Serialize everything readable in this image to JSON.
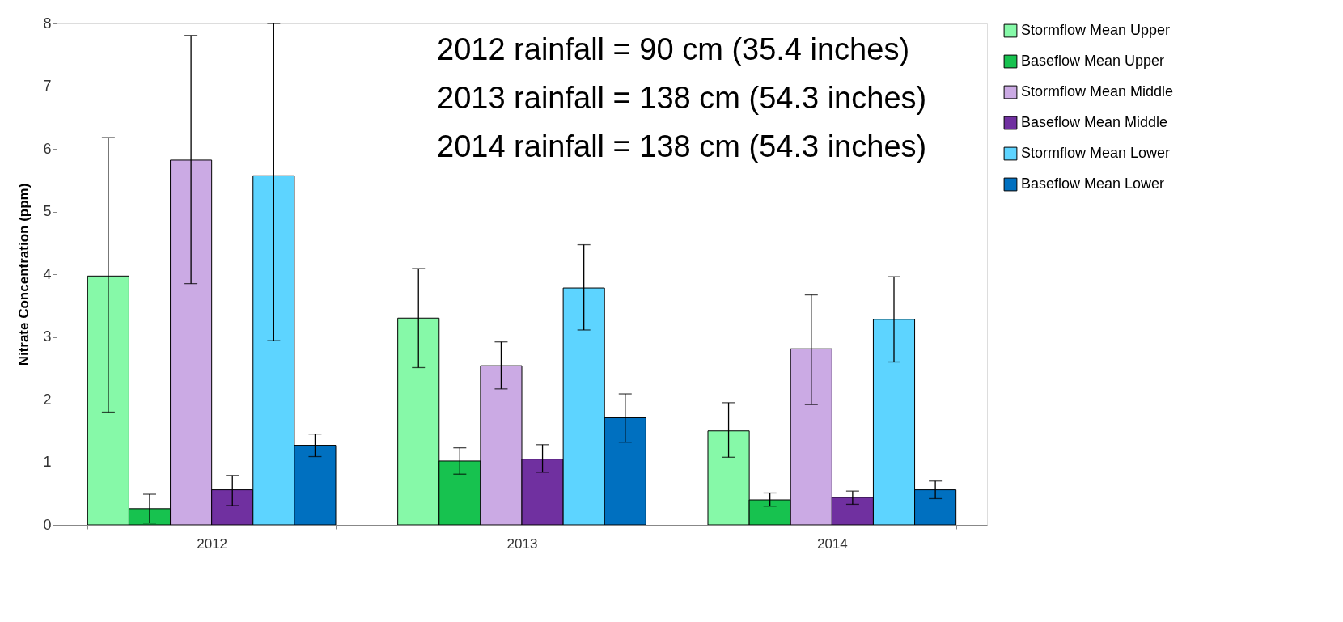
{
  "chart_data": {
    "type": "bar",
    "ylabel": "Nitrate Concentration (ppm)",
    "categories": [
      "2012",
      "2013",
      "2014"
    ],
    "series": [
      {
        "name": "Stormflow Mean Upper",
        "color": "#86f9a8",
        "values": [
          3.97,
          3.3,
          1.5
        ],
        "errors": [
          [
            1.8,
            6.18
          ],
          [
            2.51,
            4.09
          ],
          [
            1.08,
            1.95
          ]
        ]
      },
      {
        "name": "Baseflow Mean Upper",
        "color": "#17c24f",
        "values": [
          0.26,
          1.02,
          0.4
        ],
        "errors": [
          [
            0.03,
            0.49
          ],
          [
            0.81,
            1.23
          ],
          [
            0.3,
            0.51
          ]
        ]
      },
      {
        "name": "Stormflow Mean Middle",
        "color": "#cbaae4",
        "values": [
          5.82,
          2.54,
          2.81
        ],
        "errors": [
          [
            3.85,
            7.81
          ],
          [
            2.17,
            2.92
          ],
          [
            1.92,
            3.67
          ]
        ]
      },
      {
        "name": "Baseflow Mean Middle",
        "color": "#7030a0",
        "values": [
          0.56,
          1.05,
          0.44
        ],
        "errors": [
          [
            0.31,
            0.79
          ],
          [
            0.84,
            1.28
          ],
          [
            0.33,
            0.54
          ]
        ]
      },
      {
        "name": "Stormflow Mean Lower",
        "color": "#5dd4ff",
        "values": [
          5.57,
          3.78,
          3.28
        ],
        "errors": [
          [
            2.94,
            8
          ],
          [
            3.11,
            4.47
          ],
          [
            2.6,
            3.96
          ]
        ]
      },
      {
        "name": "Baseflow Mean Lower",
        "color": "#0070c0",
        "values": [
          1.27,
          1.71,
          0.56
        ],
        "errors": [
          [
            1.09,
            1.45
          ],
          [
            1.32,
            2.09
          ],
          [
            0.42,
            0.7
          ]
        ]
      }
    ],
    "ylim": [
      0,
      8
    ],
    "yticks": [
      0,
      1,
      2,
      3,
      4,
      5,
      6,
      7,
      8
    ],
    "grid": false,
    "legend": "right",
    "annotations": [
      "2012 rainfall = 90 cm (35.4 inches)",
      "2013 rainfall = 138 cm (54.3 inches)",
      "2014 rainfall = 138 cm (54.3 inches)"
    ]
  }
}
